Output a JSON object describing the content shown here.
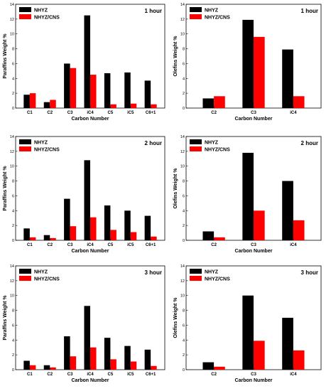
{
  "series_colors": {
    "NHYZ": "#000000",
    "NHYZ/CNS": "#ff0000"
  },
  "chart_data": [
    {
      "type": "bar",
      "title": "1 hour",
      "xlabel": "Carbon Number",
      "ylabel": "Paraffins Weight %",
      "categories": [
        "C1",
        "C2",
        "C3",
        "iC4",
        "C5",
        "iC5",
        "C6+1"
      ],
      "series": [
        {
          "name": "NHYZ",
          "values": [
            1.8,
            0.8,
            6.0,
            12.5,
            4.7,
            4.8,
            3.7
          ]
        },
        {
          "name": "NHYZ/CNS",
          "values": [
            2.0,
            1.1,
            5.4,
            4.5,
            0.5,
            0.6,
            0.5
          ]
        }
      ],
      "ylim": [
        0,
        14
      ],
      "yticks": [
        0,
        2,
        4,
        6,
        8,
        10,
        12,
        14
      ],
      "legend": "top-left"
    },
    {
      "type": "bar",
      "title": "1 hour",
      "xlabel": "Carbon Number",
      "ylabel": "Olefins Weight %",
      "categories": [
        "C2",
        "C3",
        "iC4"
      ],
      "series": [
        {
          "name": "NHYZ",
          "values": [
            1.3,
            11.9,
            7.9
          ]
        },
        {
          "name": "NHYZ/CNS",
          "values": [
            1.6,
            9.6,
            1.6
          ]
        }
      ],
      "ylim": [
        0,
        14
      ],
      "yticks": [
        0,
        2,
        4,
        6,
        8,
        10,
        12,
        14
      ],
      "legend": "top-left"
    },
    {
      "type": "bar",
      "title": "2 hour",
      "xlabel": "Carbon Number",
      "ylabel": "Paraffins Weight %",
      "categories": [
        "C1",
        "C2",
        "C3",
        "iC4",
        "C5",
        "iC5",
        "C6+1"
      ],
      "series": [
        {
          "name": "NHYZ",
          "values": [
            1.6,
            0.7,
            5.6,
            10.8,
            4.7,
            4.0,
            3.3
          ]
        },
        {
          "name": "NHYZ/CNS",
          "values": [
            0.4,
            0.3,
            1.9,
            3.1,
            1.4,
            1.1,
            0.5
          ]
        }
      ],
      "ylim": [
        0,
        14
      ],
      "yticks": [
        0,
        2,
        4,
        6,
        8,
        10,
        12,
        14
      ],
      "legend": "top-left"
    },
    {
      "type": "bar",
      "title": "2 hour",
      "xlabel": "Carbon Number",
      "ylabel": "Olefins Weight %",
      "categories": [
        "C2",
        "C3",
        "iC4"
      ],
      "series": [
        {
          "name": "NHYZ",
          "values": [
            1.2,
            11.8,
            8.0
          ]
        },
        {
          "name": "NHYZ/CNS",
          "values": [
            0.4,
            4.0,
            2.7
          ]
        }
      ],
      "ylim": [
        0,
        14
      ],
      "yticks": [
        0,
        2,
        4,
        6,
        8,
        10,
        12,
        14
      ],
      "legend": "top-left"
    },
    {
      "type": "bar",
      "title": "3 hour",
      "xlabel": "Carbon Number",
      "ylabel": "Paraffins Weight %",
      "categories": [
        "C1",
        "C2",
        "C3",
        "iC4",
        "C5",
        "iC5",
        "C6+1"
      ],
      "series": [
        {
          "name": "NHYZ",
          "values": [
            1.2,
            0.6,
            4.5,
            8.6,
            4.3,
            3.2,
            2.7
          ]
        },
        {
          "name": "NHYZ/CNS",
          "values": [
            0.6,
            0.3,
            1.8,
            3.0,
            1.4,
            1.1,
            0.5
          ]
        }
      ],
      "ylim": [
        0,
        14
      ],
      "yticks": [
        0,
        2,
        4,
        6,
        8,
        10,
        12,
        14
      ],
      "legend": "top-left"
    },
    {
      "type": "bar",
      "title": "3 hour",
      "xlabel": "Carbon Number",
      "ylabel": "Olefins Weight %",
      "categories": [
        "C2",
        "C3",
        "iC4"
      ],
      "series": [
        {
          "name": "NHYZ",
          "values": [
            1.0,
            10.0,
            7.0
          ]
        },
        {
          "name": "NHYZ/CNS",
          "values": [
            0.4,
            3.9,
            2.6
          ]
        }
      ],
      "ylim": [
        0,
        14
      ],
      "yticks": [
        0,
        2,
        4,
        6,
        8,
        10,
        12,
        14
      ],
      "legend": "top-left"
    }
  ]
}
